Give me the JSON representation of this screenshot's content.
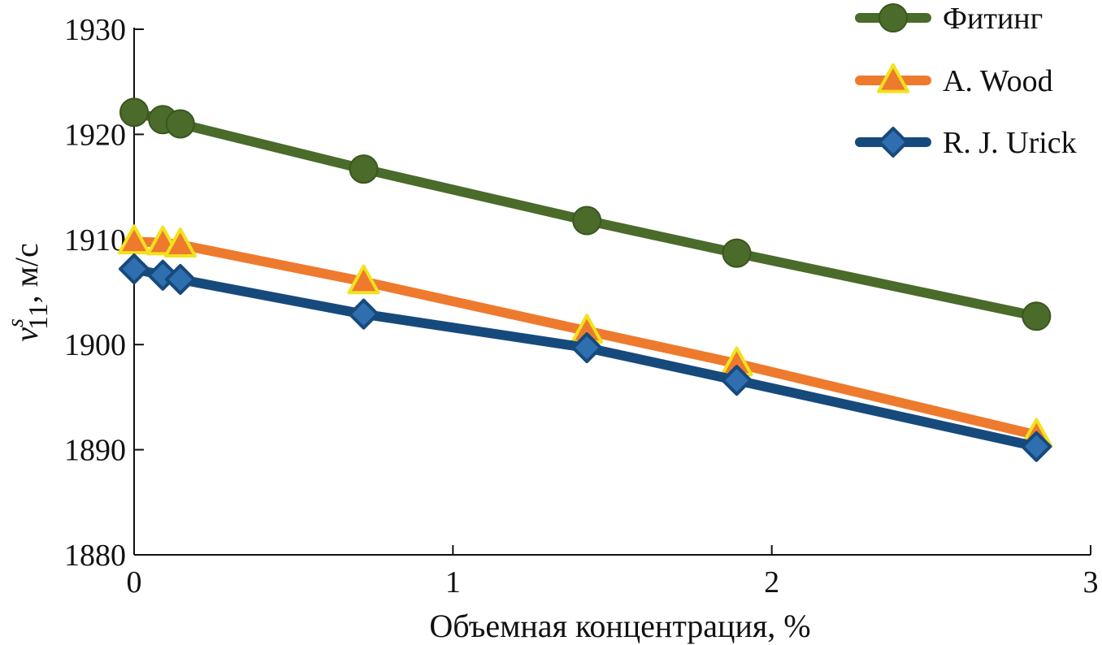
{
  "chart_data": {
    "type": "line",
    "xlabel": "Объемная концентрация, %",
    "ylabel": {
      "base": "v",
      "superscript": "s",
      "subscript": "11",
      "suffix": ", м/с"
    },
    "xlim": [
      0,
      3
    ],
    "ylim": [
      1880,
      1930
    ],
    "xticks": [
      "0",
      "1",
      "2",
      "3"
    ],
    "yticks": [
      "1880",
      "1890",
      "1900",
      "1910",
      "1920",
      "1930"
    ],
    "grid": false,
    "legend_position": "top-right",
    "series": [
      {
        "name": "Фитинг",
        "color": "#4a6b2a",
        "marker": "circle",
        "x": [
          0,
          0.09,
          0.145,
          0.72,
          1.42,
          1.89,
          2.83
        ],
        "y": [
          1922.1,
          1921.4,
          1921.0,
          1916.7,
          1911.8,
          1908.7,
          1902.7
        ]
      },
      {
        "name": "A. Wood",
        "color": "#ee7a2e",
        "marker": "triangle",
        "marker_edge": "#f2e21d",
        "x": [
          0,
          0.09,
          0.145,
          0.72,
          1.42,
          1.89,
          2.83
        ],
        "y": [
          1909.8,
          1909.7,
          1909.5,
          1906.0,
          1901.3,
          1898.2,
          1891.4
        ]
      },
      {
        "name": "R. J. Urick",
        "color": "#174a7c",
        "marker": "diamond",
        "marker_fill": "#2f6fb0",
        "x": [
          0,
          0.09,
          0.145,
          0.72,
          1.42,
          1.89,
          2.83
        ],
        "y": [
          1907.2,
          1906.6,
          1906.2,
          1902.9,
          1899.7,
          1896.6,
          1890.3
        ]
      }
    ]
  }
}
